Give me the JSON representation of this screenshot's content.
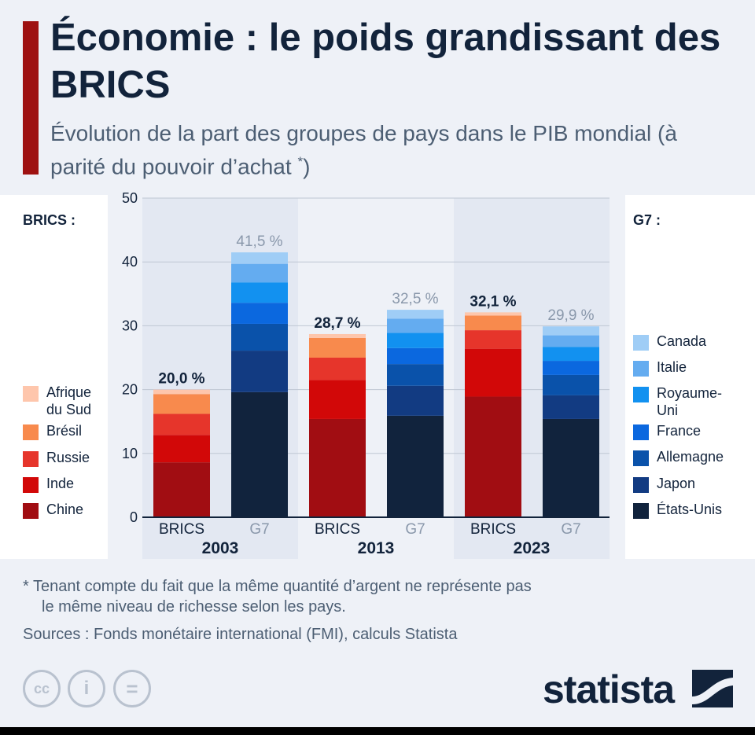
{
  "header": {
    "title": "Économie : le poids grandissant des BRICS",
    "subtitle": "Évolution de la part des groupes de pays dans le PIB mondial (à parité du pouvoir d’achat ",
    "subtitle_mark": "*",
    "subtitle_end": ")"
  },
  "legend_brics": {
    "title": "BRICS :",
    "items": [
      {
        "label": "Afrique du Sud",
        "color": "#fec6ac"
      },
      {
        "label": "Brésil",
        "color": "#f88a4d"
      },
      {
        "label": "Russie",
        "color": "#e6352b"
      },
      {
        "label": "Inde",
        "color": "#d20808"
      },
      {
        "label": "Chine",
        "color": "#a10d12"
      }
    ]
  },
  "legend_g7": {
    "title": "G7 :",
    "items": [
      {
        "label": "Canada",
        "color": "#9fcdf6"
      },
      {
        "label": "Italie",
        "color": "#64acf0"
      },
      {
        "label": "Royaume-Uni",
        "color": "#1291f0"
      },
      {
        "label": "France",
        "color": "#0b68df"
      },
      {
        "label": "Allemagne",
        "color": "#0a52aa"
      },
      {
        "label": "Japon",
        "color": "#123b82"
      },
      {
        "label": "États-Unis",
        "color": "#11233d"
      }
    ]
  },
  "chart_data": {
    "type": "bar",
    "stacked": true,
    "ylim": [
      0,
      50
    ],
    "yticks": [
      0,
      10,
      20,
      30,
      40,
      50
    ],
    "grid": true,
    "groups": [
      {
        "year": "2003",
        "bars": [
          {
            "label": "BRICS",
            "total_label": "20,0 %",
            "segments": [
              {
                "name": "Chine",
                "value": 8.6
              },
              {
                "name": "Inde",
                "value": 4.3
              },
              {
                "name": "Russie",
                "value": 3.3
              },
              {
                "name": "Brésil",
                "value": 3.1
              },
              {
                "name": "Afrique du Sud",
                "value": 0.7
              }
            ]
          },
          {
            "label": "G7",
            "total_label": "41,5 %",
            "segments": [
              {
                "name": "États-Unis",
                "value": 19.6
              },
              {
                "name": "Japon",
                "value": 6.5
              },
              {
                "name": "Allemagne",
                "value": 4.2
              },
              {
                "name": "France",
                "value": 3.3
              },
              {
                "name": "Royaume-Uni",
                "value": 3.2
              },
              {
                "name": "Italie",
                "value": 2.9
              },
              {
                "name": "Canada",
                "value": 1.8
              }
            ]
          }
        ]
      },
      {
        "year": "2013",
        "bars": [
          {
            "label": "BRICS",
            "total_label": "28,7 %",
            "segments": [
              {
                "name": "Chine",
                "value": 15.4
              },
              {
                "name": "Inde",
                "value": 6.1
              },
              {
                "name": "Russie",
                "value": 3.5
              },
              {
                "name": "Brésil",
                "value": 3.1
              },
              {
                "name": "Afrique du Sud",
                "value": 0.6
              }
            ]
          },
          {
            "label": "G7",
            "total_label": "32,5 %",
            "segments": [
              {
                "name": "États-Unis",
                "value": 15.9
              },
              {
                "name": "Japon",
                "value": 4.7
              },
              {
                "name": "Allemagne",
                "value": 3.4
              },
              {
                "name": "France",
                "value": 2.5
              },
              {
                "name": "Royaume-Uni",
                "value": 2.4
              },
              {
                "name": "Italie",
                "value": 2.2
              },
              {
                "name": "Canada",
                "value": 1.4
              }
            ]
          }
        ]
      },
      {
        "year": "2023",
        "bars": [
          {
            "label": "BRICS",
            "total_label": "32,1 %",
            "segments": [
              {
                "name": "Chine",
                "value": 18.9
              },
              {
                "name": "Inde",
                "value": 7.5
              },
              {
                "name": "Russie",
                "value": 2.9
              },
              {
                "name": "Brésil",
                "value": 2.3
              },
              {
                "name": "Afrique du Sud",
                "value": 0.5
              }
            ]
          },
          {
            "label": "G7",
            "total_label": "29,9 %",
            "segments": [
              {
                "name": "États-Unis",
                "value": 15.4
              },
              {
                "name": "Japon",
                "value": 3.7
              },
              {
                "name": "Allemagne",
                "value": 3.2
              },
              {
                "name": "France",
                "value": 2.2
              },
              {
                "name": "Royaume-Uni",
                "value": 2.2
              },
              {
                "name": "Italie",
                "value": 1.8
              },
              {
                "name": "Canada",
                "value": 1.4
              }
            ]
          }
        ]
      }
    ]
  },
  "footer": {
    "footnote_line1": "* Tenant compte du fait que la même quantité d’argent ne représente pas",
    "footnote_line2": "le même niveau de richesse selon les pays.",
    "sources": "Sources : Fonds monétaire international (FMI), calculs Statista",
    "cc_labels": [
      "cc",
      "i",
      "="
    ],
    "brand": "statista"
  }
}
